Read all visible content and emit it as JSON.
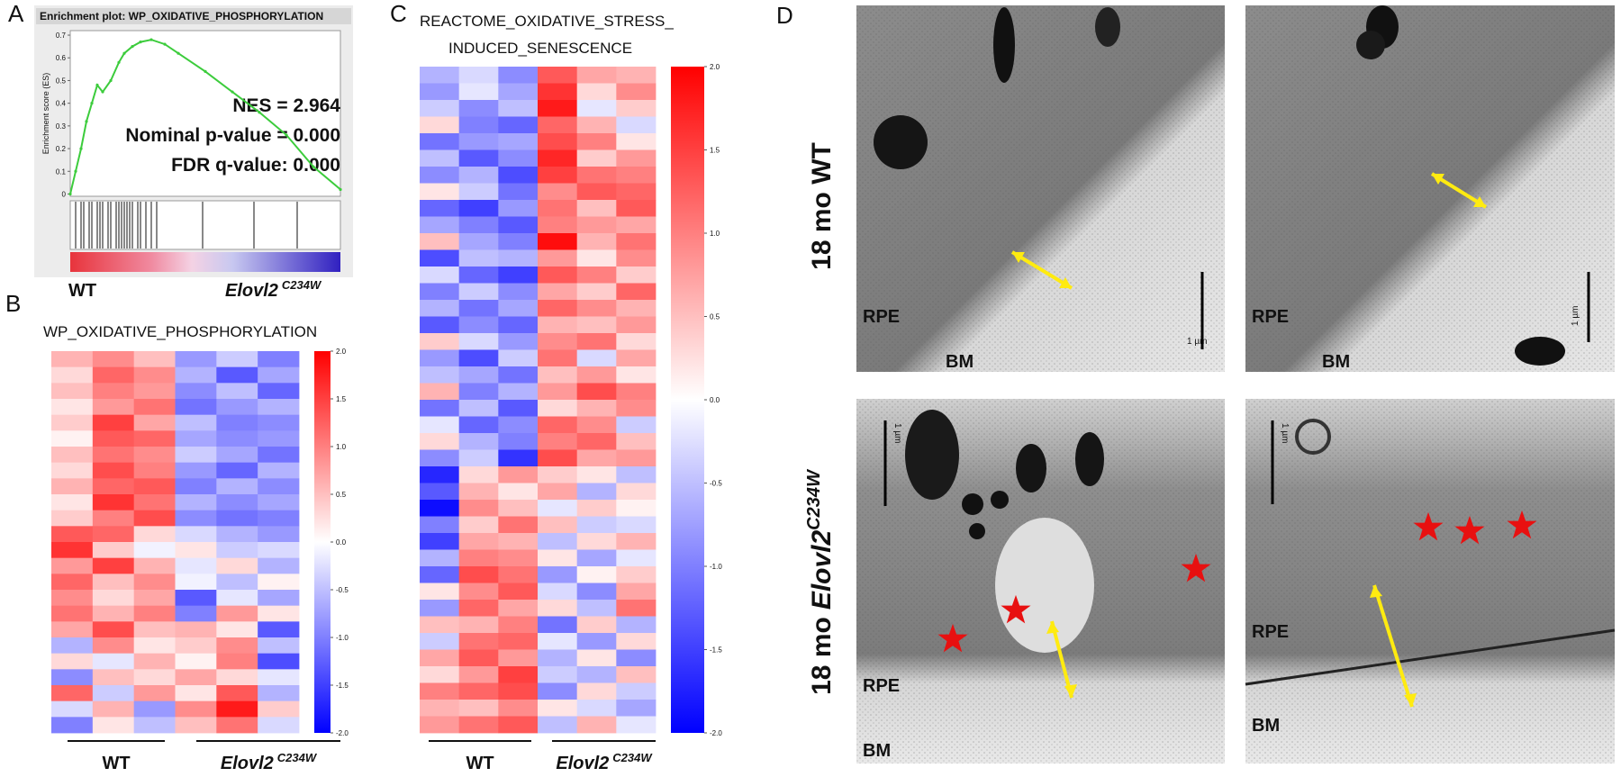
{
  "panels": {
    "A": {
      "letter": "A",
      "title": "Enrichment plot: WP_OXIDATIVE_PHOSPHORYLATION",
      "ylabel": "Enrichment score (ES)",
      "ylim": [
        -0.01,
        0.72
      ],
      "yticks": [
        0,
        0.1,
        0.2,
        0.3,
        0.4,
        0.5,
        0.6,
        0.7
      ],
      "xlim": [
        0,
        1
      ],
      "x": [
        0,
        0.02,
        0.04,
        0.06,
        0.08,
        0.1,
        0.12,
        0.15,
        0.18,
        0.2,
        0.23,
        0.26,
        0.3,
        0.35,
        0.4,
        0.5,
        0.6,
        0.7,
        0.8,
        0.9,
        1.0
      ],
      "es": [
        0,
        0.1,
        0.2,
        0.32,
        0.4,
        0.48,
        0.45,
        0.5,
        0.58,
        0.62,
        0.65,
        0.67,
        0.68,
        0.66,
        0.62,
        0.54,
        0.45,
        0.36,
        0.26,
        0.12,
        0.02
      ],
      "line_color": "#3ccc3c",
      "hits": [
        0.02,
        0.04,
        0.05,
        0.07,
        0.08,
        0.1,
        0.11,
        0.12,
        0.14,
        0.15,
        0.17,
        0.18,
        0.19,
        0.2,
        0.21,
        0.22,
        0.23,
        0.25,
        0.26,
        0.28,
        0.3,
        0.32,
        0.49,
        0.68,
        0.84
      ],
      "stats": [
        "NES = 2.964",
        "Nominal p-value = 0.000",
        "FDR q-value: 0.000"
      ],
      "left_label": "WT",
      "right_gene": "Elovl2",
      "right_allele": "C234W"
    },
    "B": {
      "letter": "B",
      "title": "WP_OXIDATIVE_PHOSPHORYLATION",
      "clim": [
        -2,
        2
      ],
      "low_color": "#0000ff",
      "mid_color": "#ffffff",
      "high_color": "#ff0000",
      "ticks": [
        {
          "value": 2,
          "label": "2.0"
        },
        1.5,
        {
          "value": 1,
          "label": "1.0"
        },
        0.5,
        {
          "value": 0,
          "label": "0.0"
        },
        -0.5,
        {
          "value": -1,
          "label": "-1.0"
        },
        -1.5,
        {
          "value": -2,
          "label": "-2.0"
        }
      ],
      "groups": [
        {
          "name": "WT"
        },
        {
          "name": "Elovl2",
          "allele": "C234W"
        }
      ],
      "matrix": [
        [
          0.6,
          0.9,
          0.5,
          -0.8,
          -0.4,
          -1.0
        ],
        [
          0.3,
          1.2,
          0.9,
          -0.6,
          -1.3,
          -0.7
        ],
        [
          0.5,
          1.0,
          0.8,
          -0.9,
          -0.5,
          -1.2
        ],
        [
          0.2,
          0.8,
          1.1,
          -1.1,
          -0.8,
          -0.6
        ],
        [
          0.4,
          1.5,
          0.7,
          -0.5,
          -1.0,
          -0.9
        ],
        [
          0.1,
          1.3,
          1.2,
          -0.7,
          -0.9,
          -0.8
        ],
        [
          0.5,
          1.1,
          0.9,
          -0.4,
          -0.7,
          -1.1
        ],
        [
          0.3,
          1.4,
          1.0,
          -0.8,
          -1.2,
          -0.6
        ],
        [
          0.6,
          1.2,
          1.3,
          -1.0,
          -0.6,
          -0.9
        ],
        [
          0.2,
          1.6,
          1.1,
          -0.6,
          -0.9,
          -0.7
        ],
        [
          0.4,
          1.0,
          1.4,
          -0.9,
          -1.1,
          -1.0
        ],
        [
          1.3,
          1.2,
          0.3,
          -0.3,
          -0.6,
          -0.8
        ],
        [
          1.6,
          0.4,
          -0.1,
          0.2,
          -0.4,
          -0.3
        ],
        [
          0.8,
          1.5,
          0.6,
          -0.2,
          0.3,
          -0.6
        ],
        [
          1.2,
          0.5,
          0.9,
          -0.1,
          -0.5,
          0.1
        ],
        [
          0.9,
          0.3,
          0.7,
          -1.3,
          -0.2,
          -0.7
        ],
        [
          1.1,
          0.6,
          1.0,
          -1.0,
          0.8,
          0.2
        ],
        [
          0.7,
          1.4,
          0.5,
          0.6,
          0.2,
          -1.3
        ],
        [
          -0.6,
          0.9,
          0.2,
          0.4,
          0.9,
          -0.5
        ],
        [
          0.3,
          -0.2,
          0.6,
          0.1,
          1.0,
          -1.4
        ],
        [
          -0.9,
          0.5,
          0.3,
          0.7,
          0.3,
          -0.2
        ],
        [
          1.2,
          -0.4,
          0.8,
          0.2,
          1.3,
          -0.6
        ],
        [
          -0.3,
          0.6,
          -0.8,
          0.9,
          1.8,
          0.4
        ],
        [
          -1.0,
          0.2,
          -0.5,
          0.5,
          1.1,
          -0.3
        ]
      ]
    },
    "C": {
      "letter": "C",
      "title": [
        "REACTOME_OXIDATIVE_STRESS_",
        "INDUCED_SENESCENCE"
      ],
      "clim": [
        -2,
        2
      ],
      "low_color": "#0000ff",
      "mid_color": "#ffffff",
      "high_color": "#ff0000",
      "ticks": [
        {
          "value": 2,
          "label": "2.0"
        },
        1.5,
        {
          "value": 1,
          "label": "1.0"
        },
        0.5,
        {
          "value": 0,
          "label": "0.0"
        },
        -0.5,
        {
          "value": -1,
          "label": "-1.0"
        },
        -1.5,
        {
          "value": -2,
          "label": "-2.0"
        }
      ],
      "groups": [
        {
          "name": "WT"
        },
        {
          "name": "Elovl2",
          "allele": "C234W"
        }
      ],
      "matrix": [
        [
          -0.6,
          -0.3,
          -0.9,
          1.3,
          0.7,
          0.6
        ],
        [
          -0.8,
          -0.2,
          -0.7,
          1.6,
          0.3,
          0.9
        ],
        [
          -0.4,
          -0.9,
          -0.5,
          1.8,
          -0.2,
          0.4
        ],
        [
          0.3,
          -1.0,
          -1.2,
          1.2,
          0.6,
          -0.3
        ],
        [
          -1.1,
          -0.8,
          -0.7,
          1.4,
          1.0,
          0.2
        ],
        [
          -0.5,
          -1.3,
          -0.9,
          1.7,
          0.4,
          0.8
        ],
        [
          -0.9,
          -0.6,
          -1.4,
          1.5,
          1.1,
          1.0
        ],
        [
          0.2,
          -0.4,
          -1.1,
          0.9,
          1.3,
          1.2
        ],
        [
          -1.2,
          -1.5,
          -0.8,
          1.1,
          0.5,
          1.3
        ],
        [
          -0.7,
          -1.0,
          -1.3,
          1.0,
          0.8,
          0.7
        ],
        [
          0.5,
          -0.7,
          -1.0,
          1.9,
          0.6,
          1.1
        ],
        [
          -1.4,
          -0.5,
          -0.6,
          0.8,
          0.2,
          0.9
        ],
        [
          -0.3,
          -1.2,
          -1.5,
          1.3,
          1.0,
          0.4
        ],
        [
          -1.0,
          -0.4,
          -0.9,
          0.7,
          0.4,
          1.2
        ],
        [
          -0.6,
          -1.1,
          -0.7,
          1.2,
          0.9,
          0.6
        ],
        [
          -1.3,
          -0.9,
          -1.2,
          0.6,
          0.5,
          0.8
        ],
        [
          0.4,
          -0.3,
          -0.8,
          0.9,
          1.1,
          0.3
        ],
        [
          -0.8,
          -1.4,
          -0.4,
          1.1,
          -0.3,
          0.7
        ],
        [
          -0.5,
          -0.7,
          -1.1,
          0.5,
          0.8,
          0.2
        ],
        [
          0.6,
          -1.0,
          -0.6,
          0.8,
          1.4,
          1.0
        ],
        [
          -1.1,
          -0.5,
          -1.3,
          0.3,
          0.6,
          0.9
        ],
        [
          -0.2,
          -1.2,
          -0.9,
          1.2,
          0.9,
          -0.4
        ],
        [
          0.3,
          -0.6,
          -1.0,
          1.0,
          1.2,
          0.5
        ],
        [
          -0.9,
          -0.4,
          -1.6,
          1.4,
          0.7,
          0.8
        ],
        [
          -1.7,
          0.3,
          0.8,
          0.4,
          0.2,
          -0.5
        ],
        [
          -1.3,
          0.6,
          0.2,
          0.7,
          -0.6,
          0.3
        ],
        [
          -1.9,
          0.9,
          0.5,
          -0.2,
          0.4,
          0.1
        ],
        [
          -1.0,
          0.4,
          1.1,
          0.5,
          -0.4,
          -0.3
        ],
        [
          -1.5,
          0.7,
          0.6,
          -0.5,
          0.3,
          0.6
        ],
        [
          -0.6,
          1.0,
          0.9,
          0.2,
          -0.7,
          -0.2
        ],
        [
          -1.2,
          1.4,
          1.1,
          -0.8,
          0.1,
          0.4
        ],
        [
          0.2,
          0.9,
          1.3,
          -0.3,
          -0.9,
          0.7
        ],
        [
          -0.8,
          1.2,
          0.7,
          0.3,
          -0.5,
          1.1
        ],
        [
          0.5,
          0.6,
          1.0,
          -1.1,
          0.4,
          -0.6
        ],
        [
          -0.4,
          1.1,
          1.2,
          -0.2,
          -0.8,
          0.3
        ],
        [
          0.7,
          1.3,
          0.8,
          -0.6,
          0.2,
          -0.9
        ],
        [
          0.3,
          0.8,
          1.5,
          -0.4,
          -0.6,
          0.5
        ],
        [
          1.0,
          1.2,
          1.4,
          -0.9,
          0.3,
          -0.4
        ],
        [
          0.6,
          0.5,
          0.9,
          0.2,
          -0.3,
          -0.7
        ],
        [
          0.8,
          1.1,
          1.3,
          -0.5,
          0.6,
          -0.2
        ]
      ]
    },
    "D": {
      "letter": "D",
      "rows": [
        {
          "prefix": "18 mo WT"
        },
        {
          "prefix": "18 mo",
          "gene": "Elovl2",
          "allele": "C234W"
        }
      ],
      "images": [
        {
          "rpe": "RPE",
          "bm": "BM",
          "scale": "1 µm"
        },
        {
          "rpe": "RPE",
          "bm": "BM",
          "scale": "1 µm"
        },
        {
          "rpe": "RPE",
          "bm": "BM",
          "scale": "1 µm"
        },
        {
          "rpe": "RPE",
          "bm": "BM",
          "scale": "1 µm"
        }
      ]
    }
  }
}
